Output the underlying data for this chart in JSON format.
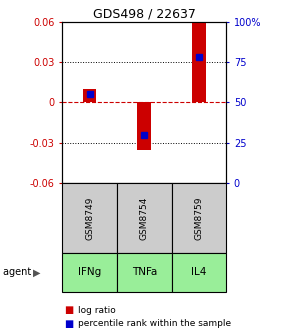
{
  "title": "GDS498 / 22637",
  "samples": [
    "GSM8749",
    "GSM8754",
    "GSM8759"
  ],
  "agents": [
    "IFNg",
    "TNFa",
    "IL4"
  ],
  "log_ratios": [
    0.01,
    -0.035,
    0.06
  ],
  "percentile_ranks": [
    55,
    30,
    78
  ],
  "ylim_left": [
    -0.06,
    0.06
  ],
  "ylim_right": [
    0,
    100
  ],
  "yticks_left": [
    -0.06,
    -0.03,
    0,
    0.03,
    0.06
  ],
  "yticks_right": [
    0,
    25,
    50,
    75,
    100
  ],
  "bar_color": "#cc0000",
  "percentile_color": "#0000cc",
  "zero_line_color": "#cc0000",
  "sample_box_color": "#cccccc",
  "agent_box_color": "#99ee99",
  "background_color": "#ffffff",
  "title_fontsize": 9,
  "tick_fontsize": 7,
  "bar_width": 0.25
}
